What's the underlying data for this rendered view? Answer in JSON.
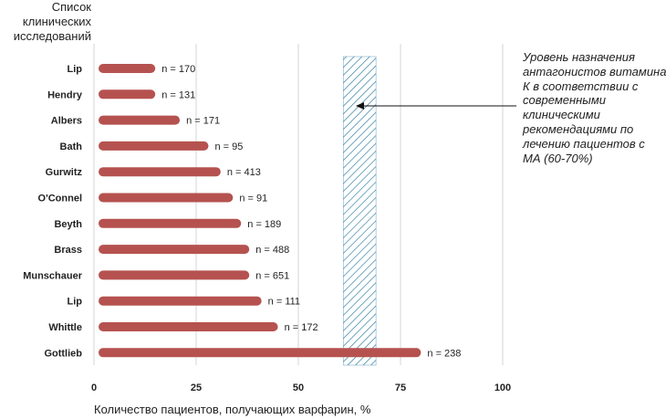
{
  "chart_data": {
    "type": "bar",
    "orientation": "horizontal",
    "ylabel_lines": [
      "Список",
      "клинических",
      "исследований"
    ],
    "xlabel": "Количество пациентов, получающих варфарин, %",
    "categories": [
      "Lip",
      "Hendry",
      "Albers",
      "Bath",
      "Gurwitz",
      "O'Connel",
      "Beyth",
      "Brass",
      "Munschauer",
      "Lip",
      "Whittle",
      "Gottlieb"
    ],
    "values": [
      15,
      15,
      21,
      28,
      31,
      34,
      36,
      38,
      38,
      41,
      45,
      80
    ],
    "data_labels": [
      "n = 170",
      "n = 131",
      "n = 171",
      "n = 95",
      "n = 413",
      "n = 91",
      "n = 189",
      "n = 488",
      "n = 651",
      "n = 111",
      "n = 172",
      "n = 238"
    ],
    "xlim": [
      0,
      100
    ],
    "xticks": [
      "0",
      "25",
      "50",
      "75",
      "100"
    ],
    "grid": "vertical",
    "bar_color": "#b5524f",
    "band": {
      "from": 61,
      "to": 69,
      "pattern": "diagonal hatch",
      "color": "#2a7aa0"
    },
    "annotation_lines": [
      "Уровень назначения",
      "антагонистов витамина",
      "К в соответствии с",
      "современными",
      "клиническими",
      "рекомендациями по",
      "лечению пациентов с",
      "МА (60-70%)"
    ]
  }
}
